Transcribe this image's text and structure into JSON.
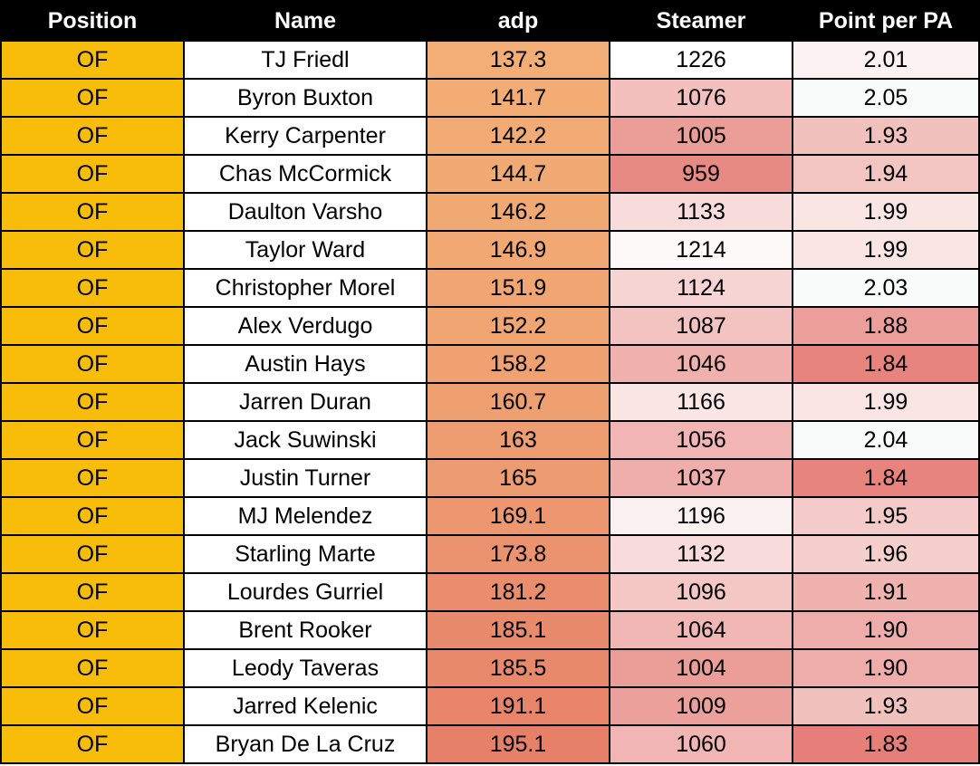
{
  "headers": [
    "Position",
    "Name",
    "adp",
    "Steamer",
    "Point per PA"
  ],
  "rows": [
    {
      "position": "OF",
      "name": "TJ Friedl",
      "adp": "137.3",
      "steamer": "1226",
      "ppa": "2.01",
      "adp_color": "#f2ae76",
      "steamer_color": "#ffffff",
      "ppa_color": "#fcf2f1"
    },
    {
      "position": "OF",
      "name": "Byron Buxton",
      "adp": "141.7",
      "steamer": "1076",
      "ppa": "2.05",
      "adp_color": "#f2ac74",
      "steamer_color": "#f3c0be",
      "ppa_color": "#f8fbf9"
    },
    {
      "position": "OF",
      "name": "Kerry Carpenter",
      "adp": "142.2",
      "steamer": "1005",
      "ppa": "1.93",
      "adp_color": "#f2ab74",
      "steamer_color": "#eb9e98",
      "ppa_color": "#f1c1be"
    },
    {
      "position": "OF",
      "name": "Chas McCormick",
      "adp": "144.7",
      "steamer": "959",
      "ppa": "1.94",
      "adp_color": "#f1aa73",
      "steamer_color": "#e88a84",
      "ppa_color": "#f3c5c2"
    },
    {
      "position": "OF",
      "name": "Daulton Varsho",
      "adp": "146.2",
      "steamer": "1133",
      "ppa": "1.99",
      "adp_color": "#f1a973",
      "steamer_color": "#f8dcdb",
      "ppa_color": "#f9e5e4"
    },
    {
      "position": "OF",
      "name": "Taylor Ward",
      "adp": "146.9",
      "steamer": "1214",
      "ppa": "1.99",
      "adp_color": "#f1a873",
      "steamer_color": "#fefafa",
      "ppa_color": "#f9e5e4"
    },
    {
      "position": "OF",
      "name": "Christopher Morel",
      "adp": "151.9",
      "steamer": "1124",
      "ppa": "2.03",
      "adp_color": "#f0a572",
      "steamer_color": "#f6d4d3",
      "ppa_color": "#f9fcfa"
    },
    {
      "position": "OF",
      "name": "Alex Verdugo",
      "adp": "152.2",
      "steamer": "1087",
      "ppa": "1.88",
      "adp_color": "#f0a572",
      "steamer_color": "#f3c3c1",
      "ppa_color": "#ec9f9a"
    },
    {
      "position": "OF",
      "name": "Austin Hays",
      "adp": "158.2",
      "steamer": "1046",
      "ppa": "1.84",
      "adp_color": "#efa171",
      "steamer_color": "#f0b1ae",
      "ppa_color": "#e7847e"
    },
    {
      "position": "OF",
      "name": "Jarren Duran",
      "adp": "160.7",
      "steamer": "1166",
      "ppa": "1.99",
      "adp_color": "#ee9f70",
      "steamer_color": "#fae6e5",
      "ppa_color": "#f9e5e4"
    },
    {
      "position": "OF",
      "name": "Jack Suwinski",
      "adp": "163",
      "steamer": "1056",
      "ppa": "2.04",
      "adp_color": "#ee9d70",
      "steamer_color": "#f1b5b3",
      "ppa_color": "#f8fbf9"
    },
    {
      "position": "OF",
      "name": "Justin Turner",
      "adp": "165",
      "steamer": "1037",
      "ppa": "1.84",
      "adp_color": "#ed9b70",
      "steamer_color": "#efaeab",
      "ppa_color": "#e7847e"
    },
    {
      "position": "OF",
      "name": "MJ Melendez",
      "adp": "169.1",
      "steamer": "1196",
      "ppa": "1.95",
      "adp_color": "#ec976f",
      "steamer_color": "#fcf1f1",
      "ppa_color": "#f4cbc9"
    },
    {
      "position": "OF",
      "name": "Starling Marte",
      "adp": "173.8",
      "steamer": "1132",
      "ppa": "1.96",
      "adp_color": "#eb936e",
      "steamer_color": "#f8dcdb",
      "ppa_color": "#f5cfcd"
    },
    {
      "position": "OF",
      "name": "Lourdes Gurriel",
      "adp": "181.2",
      "steamer": "1096",
      "ppa": "1.91",
      "adp_color": "#e98d6c",
      "steamer_color": "#f4c7c5",
      "ppa_color": "#efb2ae"
    },
    {
      "position": "OF",
      "name": "Brent Rooker",
      "adp": "185.1",
      "steamer": "1064",
      "ppa": "1.90",
      "adp_color": "#e88a6c",
      "steamer_color": "#f1b7b5",
      "ppa_color": "#eeadaa"
    },
    {
      "position": "OF",
      "name": "Leody Taveras",
      "adp": "185.5",
      "steamer": "1004",
      "ppa": "1.90",
      "adp_color": "#e8896c",
      "steamer_color": "#eb9d98",
      "ppa_color": "#eeadaa"
    },
    {
      "position": "OF",
      "name": "Jarred Kelenic",
      "adp": "191.1",
      "steamer": "1009",
      "ppa": "1.93",
      "adp_color": "#e7846a",
      "steamer_color": "#eba09b",
      "ppa_color": "#f1c1be"
    },
    {
      "position": "OF",
      "name": "Bryan De La Cruz",
      "adp": "195.1",
      "steamer": "1060",
      "ppa": "1.83",
      "adp_color": "#e68069",
      "steamer_color": "#f1b6b4",
      "ppa_color": "#e67f79"
    }
  ]
}
